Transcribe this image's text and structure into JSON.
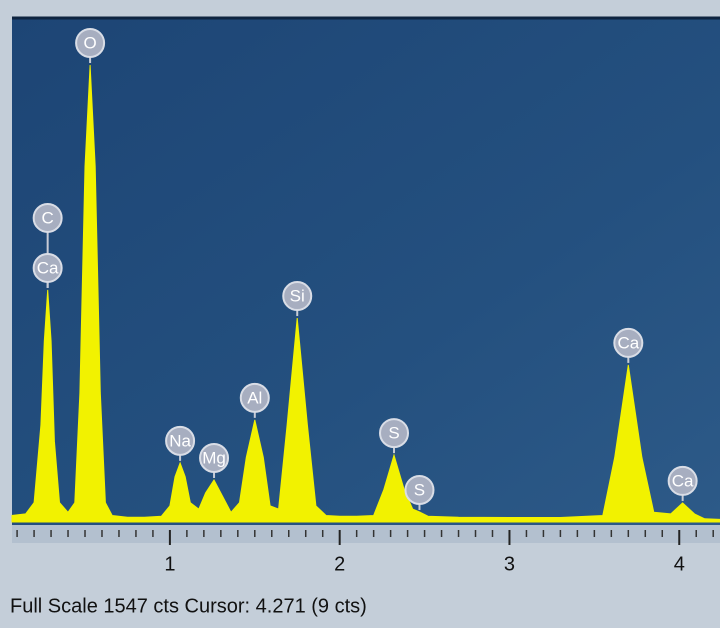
{
  "chart_data": {
    "type": "spectrum",
    "color": "#f2f200",
    "x": [
      0.07,
      0.15,
      0.2,
      0.24,
      0.26,
      0.28,
      0.3,
      0.32,
      0.35,
      0.4,
      0.44,
      0.47,
      0.5,
      0.53,
      0.56,
      0.59,
      0.62,
      0.66,
      0.75,
      0.85,
      0.95,
      1.0,
      1.03,
      1.06,
      1.09,
      1.12,
      1.17,
      1.21,
      1.26,
      1.31,
      1.36,
      1.41,
      1.45,
      1.5,
      1.55,
      1.59,
      1.64,
      1.69,
      1.75,
      1.81,
      1.86,
      1.92,
      2.0,
      2.1,
      2.2,
      2.26,
      2.32,
      2.38,
      2.43,
      2.47,
      2.52,
      2.7,
      3.0,
      3.3,
      3.55,
      3.62,
      3.7,
      3.78,
      3.85,
      3.95,
      4.02,
      4.09,
      4.15,
      4.24
    ],
    "values": [
      20,
      25,
      60,
      300,
      560,
      718,
      560,
      250,
      60,
      30,
      60,
      400,
      1100,
      1414,
      1100,
      400,
      60,
      20,
      15,
      15,
      18,
      50,
      140,
      183,
      140,
      60,
      40,
      90,
      130,
      80,
      30,
      60,
      200,
      316,
      200,
      50,
      40,
      300,
      631,
      300,
      50,
      20,
      18,
      18,
      20,
      100,
      207,
      100,
      40,
      31,
      18,
      15,
      14,
      14,
      20,
      200,
      486,
      200,
      30,
      25,
      59,
      25,
      10,
      8
    ],
    "peaks": [
      {
        "label": "C",
        "energy": 0.28,
        "counts": 718
      },
      {
        "label": "Ca",
        "energy": 0.28,
        "counts": 718
      },
      {
        "label": "O",
        "energy": 0.53,
        "counts": 1414
      },
      {
        "label": "Na",
        "energy": 1.06,
        "counts": 183
      },
      {
        "label": "Mg",
        "energy": 1.26,
        "counts": 130
      },
      {
        "label": "Al",
        "energy": 1.5,
        "counts": 316
      },
      {
        "label": "Si",
        "energy": 1.75,
        "counts": 631
      },
      {
        "label": "S",
        "energy": 2.32,
        "counts": 207
      },
      {
        "label": "S",
        "energy": 2.47,
        "counts": 31
      },
      {
        "label": "Ca",
        "energy": 3.7,
        "counts": 486
      },
      {
        "label": "Ca",
        "energy": 4.02,
        "counts": 59
      }
    ],
    "xlim": [
      0.07,
      4.24
    ],
    "ylim": [
      0,
      1547
    ],
    "xticks": [
      1,
      2,
      3,
      4
    ],
    "xminorticks": [
      0.1,
      0.2,
      0.3,
      0.4,
      0.5,
      0.6,
      0.7,
      0.8,
      0.9,
      1.1,
      1.2,
      1.3,
      1.4,
      1.5,
      1.6,
      1.7,
      1.8,
      1.9,
      2.1,
      2.2,
      2.3,
      2.4,
      2.5,
      2.6,
      2.7,
      2.8,
      2.9,
      3.1,
      3.2,
      3.3,
      3.4,
      3.5,
      3.6,
      3.7,
      3.8,
      3.9,
      4.1,
      4.2
    ],
    "status": "Full Scale 1547 cts Cursor: 4.271  (9 cts)"
  }
}
